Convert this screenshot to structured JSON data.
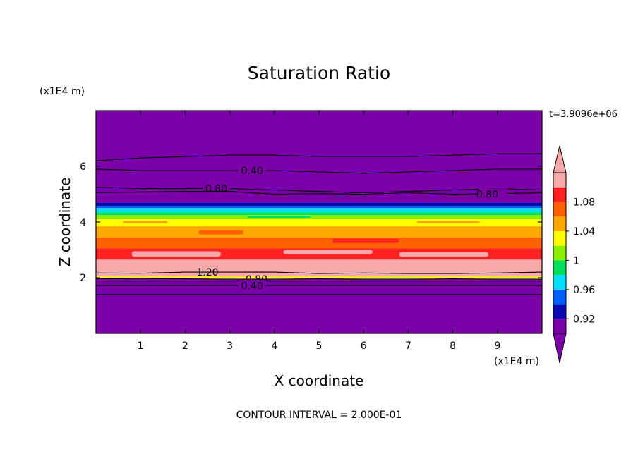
{
  "chart_data": {
    "type": "heatmap",
    "title": "Saturation Ratio",
    "xlabel": "X coordinate",
    "ylabel": "Z coordinate",
    "x_unit_label": "(x1E4 m)",
    "y_unit_label": "(x1E4 m)",
    "time_label": "t=3.9096e+06",
    "footer": "CONTOUR INTERVAL = 2.000E-01",
    "xlim": [
      0,
      10
    ],
    "ylim": [
      0,
      8
    ],
    "x_ticks": [
      "1",
      "2",
      "3",
      "4",
      "5",
      "6",
      "7",
      "8",
      "9"
    ],
    "y_ticks": [
      "2",
      "4",
      "6"
    ],
    "colorbar": {
      "levels": [
        0.9,
        0.92,
        0.94,
        0.96,
        0.98,
        1.0,
        1.02,
        1.04,
        1.06,
        1.08,
        1.1
      ],
      "tick_labels": [
        "0.92",
        "0.96",
        "1",
        "1.04",
        "1.08"
      ],
      "colors": [
        "#7b00a8",
        "#0a0ab4",
        "#0060ff",
        "#00e0ff",
        "#00e060",
        "#88f000",
        "#ffff00",
        "#ffa800",
        "#ff6000",
        "#ff2020",
        "#f8a8a8"
      ],
      "under_color": "#7b00a8",
      "over_color": "#f8a8a8"
    },
    "bands": [
      {
        "z0": 0.0,
        "z1": 1.96,
        "color": "#7b00a8"
      },
      {
        "z0": 1.96,
        "z1": 2.04,
        "color": "#ffff00"
      },
      {
        "z0": 2.04,
        "z1": 2.65,
        "color": "#f8a8a8"
      },
      {
        "z0": 2.65,
        "z1": 3.05,
        "color": "#ff2020"
      },
      {
        "z0": 3.05,
        "z1": 3.45,
        "color": "#ff6000"
      },
      {
        "z0": 3.45,
        "z1": 3.85,
        "color": "#ffa800"
      },
      {
        "z0": 3.85,
        "z1": 4.1,
        "color": "#ffff00"
      },
      {
        "z0": 4.1,
        "z1": 4.25,
        "color": "#88f000"
      },
      {
        "z0": 4.25,
        "z1": 4.35,
        "color": "#00e060"
      },
      {
        "z0": 4.35,
        "z1": 4.5,
        "color": "#00e0ff"
      },
      {
        "z0": 4.5,
        "z1": 4.58,
        "color": "#0060ff"
      },
      {
        "z0": 4.58,
        "z1": 4.7,
        "color": "#0a0ab4"
      },
      {
        "z0": 4.7,
        "z1": 8.0,
        "color": "#7b00a8"
      }
    ],
    "patches": [
      {
        "x0": 0.8,
        "x1": 2.8,
        "z0": 2.75,
        "z1": 2.95,
        "color": "#f8a8a8"
      },
      {
        "x0": 4.2,
        "x1": 6.2,
        "z0": 2.85,
        "z1": 3.0,
        "color": "#f8a8a8"
      },
      {
        "x0": 6.8,
        "x1": 8.8,
        "z0": 2.75,
        "z1": 2.92,
        "color": "#f8a8a8"
      },
      {
        "x0": 2.3,
        "x1": 3.3,
        "z0": 3.55,
        "z1": 3.7,
        "color": "#ff6000"
      },
      {
        "x0": 5.3,
        "x1": 6.8,
        "z0": 3.25,
        "z1": 3.4,
        "color": "#ff2020"
      },
      {
        "x0": 0.6,
        "x1": 1.6,
        "z0": 3.95,
        "z1": 4.05,
        "color": "#ffa800"
      },
      {
        "x0": 7.2,
        "x1": 8.6,
        "z0": 3.95,
        "z1": 4.05,
        "color": "#ffa800"
      },
      {
        "x0": 3.4,
        "x1": 4.8,
        "z0": 4.15,
        "z1": 4.22,
        "color": "#00e060"
      },
      {
        "x0": 7.8,
        "x1": 9.2,
        "z0": 4.1,
        "z1": 4.2,
        "color": "#88f000"
      }
    ],
    "contours": [
      {
        "level": "0.40",
        "z": [
          6.2,
          6.3,
          6.35,
          6.4,
          6.4,
          6.35,
          6.35,
          6.35,
          6.4,
          6.45,
          6.45
        ],
        "label": null
      },
      {
        "level": "0.40",
        "z": [
          5.9,
          5.85,
          5.85,
          5.85,
          5.85,
          5.8,
          5.75,
          5.8,
          5.85,
          5.9,
          5.9
        ],
        "label": "0.40",
        "label_x": 3.5
      },
      {
        "level": "0.80",
        "z": [
          5.25,
          5.2,
          5.2,
          5.2,
          5.15,
          5.1,
          5.05,
          5.1,
          5.15,
          5.2,
          5.15
        ],
        "label": "0.80",
        "label_x": 2.7
      },
      {
        "level": "0.80",
        "z": [
          5.05,
          5.08,
          5.1,
          5.1,
          5.0,
          5.02,
          5.0,
          5.05,
          5.0,
          5.02,
          5.05
        ],
        "label": null
      },
      {
        "level": "1.20",
        "z": [
          2.17,
          2.16,
          2.2,
          2.2,
          2.2,
          2.15,
          2.17,
          2.15,
          2.15,
          2.17,
          2.2
        ],
        "label": "1.20",
        "label_x": 2.5
      },
      {
        "level": "0.80",
        "z": [
          1.96,
          1.97,
          1.96,
          1.95,
          1.95,
          1.96,
          1.95,
          1.95,
          1.96,
          1.95,
          1.95
        ],
        "label": "0.80",
        "label_x": 3.6
      },
      {
        "level": "0.60",
        "z": [
          1.88,
          1.88,
          1.88,
          1.88,
          1.88,
          1.88,
          1.88,
          1.88,
          1.88,
          1.88,
          1.88
        ],
        "label": null
      },
      {
        "level": "0.40",
        "z": [
          1.72,
          1.72,
          1.72,
          1.72,
          1.72,
          1.72,
          1.72,
          1.72,
          1.72,
          1.72,
          1.72
        ],
        "label": "0.40",
        "label_x": 3.5
      },
      {
        "level": "0.20",
        "z": [
          1.4,
          1.4,
          1.4,
          1.4,
          1.4,
          1.4,
          1.4,
          1.4,
          1.4,
          1.4,
          1.4
        ],
        "label": null
      }
    ],
    "contour_label_extra": {
      "text": "0.80",
      "x": 8.9,
      "z": 5.0
    }
  }
}
